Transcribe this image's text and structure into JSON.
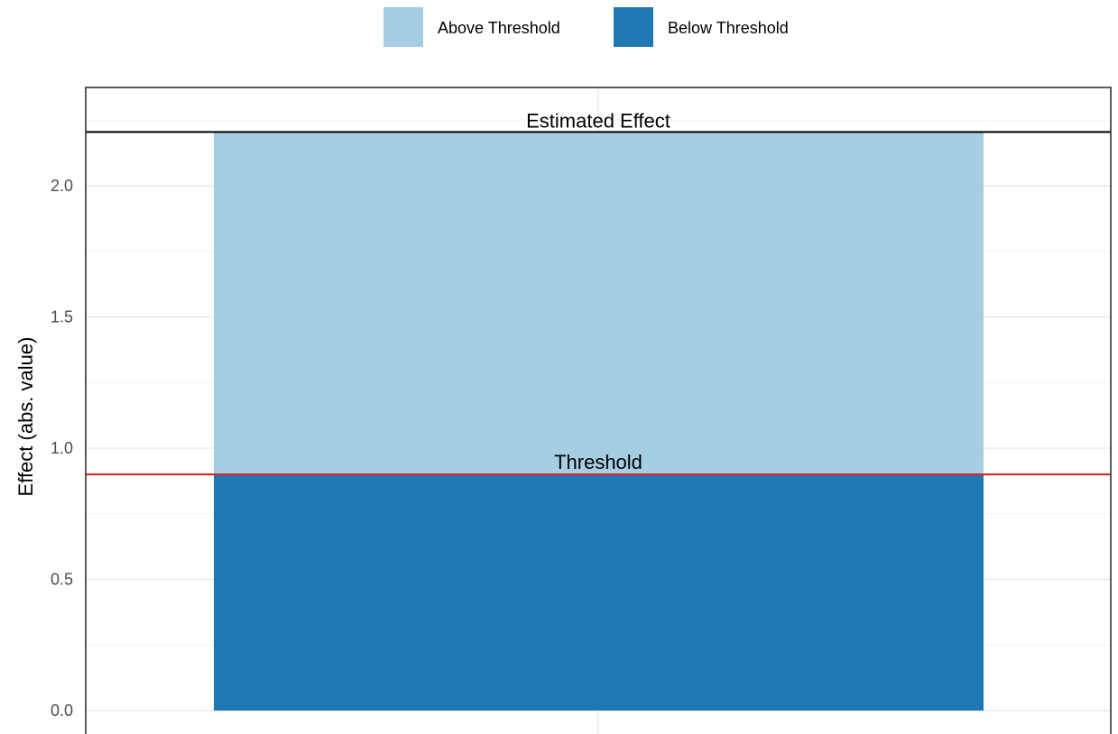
{
  "chart_data": {
    "type": "bar",
    "title": "",
    "xlabel": "",
    "ylabel": "Effect (abs. value)",
    "ylim": [
      0,
      2.2
    ],
    "yticks": [
      "0.0",
      "0.5",
      "1.0",
      "1.5",
      "2.0"
    ],
    "grid": true,
    "legend_position": "top",
    "categories": [
      ""
    ],
    "series": [
      {
        "name": "Below Threshold",
        "values": [
          0.9
        ],
        "color": "#1f78b4"
      },
      {
        "name": "Above Threshold",
        "values": [
          1.305
        ],
        "color": "#a6cee3"
      }
    ],
    "stacked": true,
    "total_effect": 2.205,
    "threshold": 0.9,
    "annotations": [
      {
        "text": "Estimated Effect",
        "y": 2.205,
        "line_color": "#000000"
      },
      {
        "text": "Threshold",
        "y": 0.9,
        "line_color": "#e31a1c"
      }
    ],
    "legend": [
      {
        "label": "Above Threshold",
        "color": "#a6cee3"
      },
      {
        "label": "Below Threshold",
        "color": "#1f78b4"
      }
    ]
  }
}
